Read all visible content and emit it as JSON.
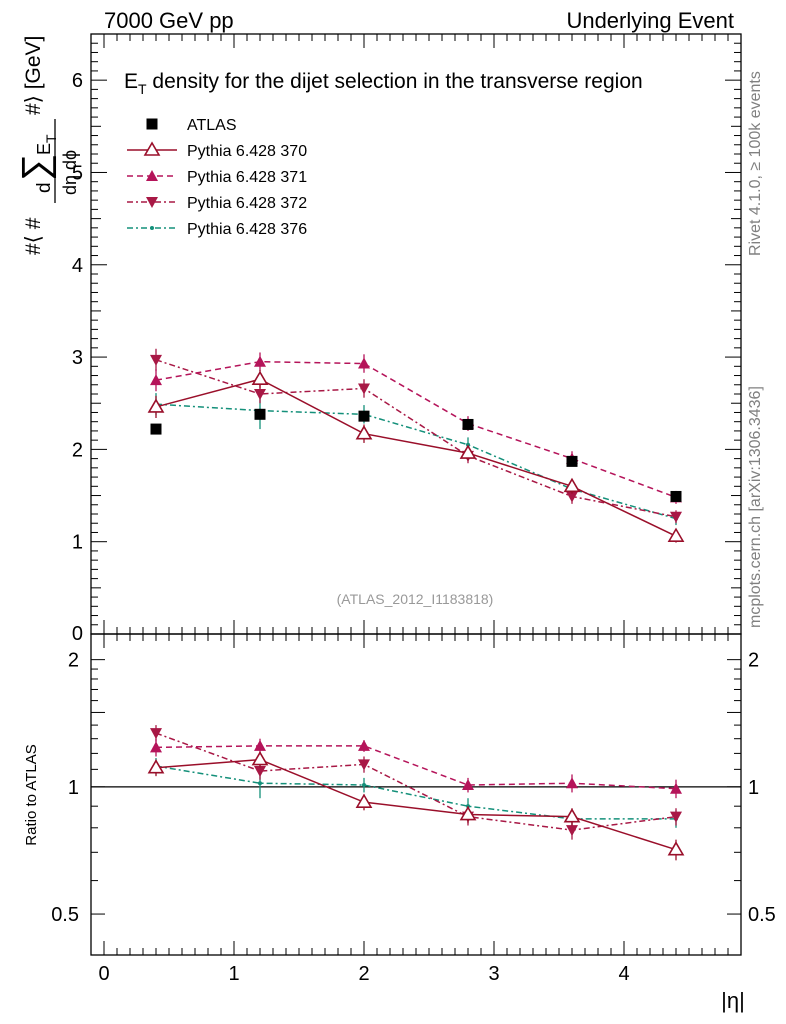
{
  "header": {
    "left": "7000 GeV pp",
    "right": "Underlying Event"
  },
  "side_labels": {
    "rivet": "Rivet 4.1.0, ≥ 100k events",
    "mcplots": "mcplots.cern.ch [arXiv:1306.3436]"
  },
  "chart_data": [
    {
      "type": "scatter",
      "panel": "main",
      "title_parts": [
        "E",
        "T",
        " density  for the dijet selection in the transverse region"
      ],
      "ylabel_parts": [
        "#⟨ #",
        "d",
        "∑",
        "E",
        "T",
        "dη dϕ",
        "#⟩ [GeV]"
      ],
      "analysis_tag": "(ATLAS_2012_I1183818)",
      "ylim": [
        0,
        6.5
      ],
      "xlim": [
        -0.1,
        4.9
      ],
      "yticks": [
        0,
        1,
        2,
        3,
        4,
        5,
        6
      ],
      "ytick_labels": [
        "0",
        "1",
        "2",
        "3",
        "4",
        "5",
        "6"
      ],
      "x": [
        0.4,
        1.2,
        2.0,
        2.8,
        3.6,
        4.4
      ],
      "series": [
        {
          "name": "ATLAS",
          "color": "#000000",
          "values": [
            2.22,
            2.38,
            2.36,
            2.27,
            1.87,
            1.49
          ],
          "errors": [
            0.02,
            0.03,
            0.03,
            0.04,
            0.04,
            0.04
          ]
        },
        {
          "name": "Pythia 6.428 370",
          "color": "#9a0f2a",
          "values": [
            2.46,
            2.76,
            2.17,
            1.96,
            1.6,
            1.06
          ],
          "errors": [
            0.12,
            0.1,
            0.1,
            0.08,
            0.08,
            0.07
          ]
        },
        {
          "name": "Pythia 6.428 371",
          "color": "#b5145a",
          "values": [
            2.75,
            2.95,
            2.93,
            2.28,
            1.9,
            1.48
          ],
          "errors": [
            0.12,
            0.1,
            0.1,
            0.08,
            0.08,
            0.07
          ]
        },
        {
          "name": "Pythia 6.428 372",
          "color": "#a81845",
          "values": [
            2.97,
            2.6,
            2.66,
            1.93,
            1.49,
            1.27
          ],
          "errors": [
            0.12,
            0.1,
            0.1,
            0.08,
            0.08,
            0.07
          ]
        },
        {
          "name": "Pythia 6.428 376",
          "color": "#14907a",
          "values": [
            2.49,
            2.42,
            2.38,
            2.05,
            1.57,
            1.25
          ],
          "errors": [
            0.12,
            0.2,
            0.1,
            0.08,
            0.08,
            0.07
          ]
        }
      ]
    },
    {
      "type": "scatter",
      "panel": "ratio",
      "ylabel": "Ratio to ATLAS",
      "ylim": [
        0.4,
        2.3
      ],
      "yticks": [
        0.5,
        1,
        2
      ],
      "ytick_labels": [
        "0.5",
        "1",
        "2"
      ],
      "reference_line": 1,
      "xlabel": "|η|",
      "xticks": [
        0,
        1,
        2,
        3,
        4
      ],
      "xtick_labels": [
        "0",
        "1",
        "2",
        "3",
        "4"
      ],
      "x": [
        0.4,
        1.2,
        2.0,
        2.8,
        3.6,
        4.4
      ],
      "series": [
        {
          "name": "Pythia 6.428 370",
          "values": [
            1.11,
            1.16,
            0.92,
            0.86,
            0.85,
            0.71
          ],
          "errors": [
            0.05,
            0.05,
            0.04,
            0.04,
            0.04,
            0.04
          ]
        },
        {
          "name": "Pythia 6.428 371",
          "values": [
            1.24,
            1.25,
            1.25,
            1.01,
            1.02,
            0.99
          ],
          "errors": [
            0.06,
            0.05,
            0.04,
            0.04,
            0.05,
            0.05
          ]
        },
        {
          "name": "Pythia 6.428 372",
          "values": [
            1.34,
            1.09,
            1.13,
            0.85,
            0.79,
            0.85
          ],
          "errors": [
            0.06,
            0.05,
            0.05,
            0.04,
            0.04,
            0.04
          ]
        },
        {
          "name": "Pythia 6.428 376",
          "values": [
            1.12,
            1.02,
            1.01,
            0.9,
            0.84,
            0.84
          ],
          "errors": [
            0.05,
            0.08,
            0.04,
            0.04,
            0.04,
            0.04
          ]
        }
      ]
    }
  ]
}
